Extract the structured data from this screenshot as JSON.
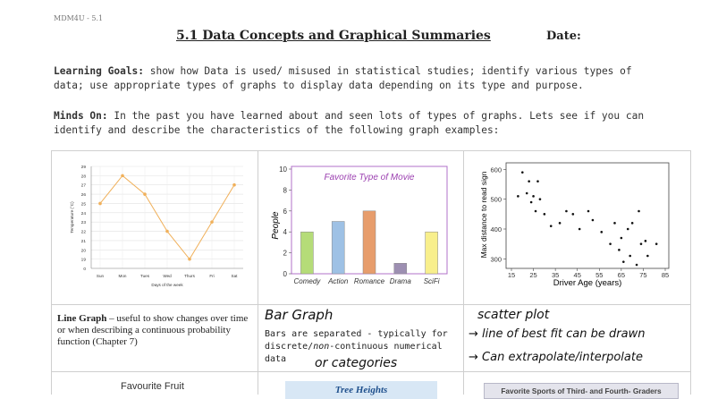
{
  "header": {
    "course": "MDM4U - 5.1",
    "title": "5.1 Data Concepts and Graphical Summaries",
    "date_label": "Date:"
  },
  "learning_goals": {
    "label": "Learning Goals:",
    "text": " show how Data is used/ misused in statistical studies; identify various types of data; use appropriate types of graphs to display data depending on its type and purpose."
  },
  "minds_on": {
    "label": "Minds On:",
    "text": " In the past you have learned about and seen lots of types of graphs.  Lets see if you can identify and describe the characteristics of the following graph examples:"
  },
  "cells": {
    "line": {
      "name": "Line Graph",
      "desc": " – useful to show changes over time or when describing a continuous probability function (Chapter 7)"
    },
    "bar": {
      "handwriting": "Bar Graph",
      "desc_1": "Bars are separated - typically for discrete/",
      "desc_non": "non",
      "desc_2": "-continuous numerical data",
      "handwriting_2": "or categories"
    },
    "scatter": {
      "handwriting_1": "scatter plot",
      "handwriting_2": "→ line of best fit can be drawn",
      "handwriting_3": "→ Can extrapolate/interpolate"
    },
    "row2": {
      "fruit_title": "Favourite Fruit",
      "tree_title": "Tree Heights",
      "sports_title": "Favorite Sports of Third- and Fourth- Graders"
    }
  },
  "chart_data": [
    {
      "type": "line",
      "title": "",
      "xlabel": "Days of the week",
      "ylabel": "Temperature (°C)",
      "categories": [
        "Sun",
        "Mon",
        "Tues",
        "Wed",
        "Thurs",
        "Fri",
        "Sat"
      ],
      "values": [
        25,
        28,
        26,
        22,
        19,
        23,
        27
      ],
      "ylim": [
        0,
        29
      ],
      "yticks": [
        0,
        19,
        20,
        21,
        22,
        23,
        24,
        25,
        26,
        27,
        28,
        29
      ],
      "color": "#f0b05a",
      "grid": true
    },
    {
      "type": "bar",
      "title": "Favorite Type of Movie",
      "ylabel": "People",
      "categories": [
        "Comedy",
        "Action",
        "Romance",
        "Drama",
        "SciFi"
      ],
      "values": [
        4,
        5,
        6,
        1,
        4
      ],
      "colors": [
        "#b5dc78",
        "#9ec1e5",
        "#e79d6c",
        "#9d8fb2",
        "#f8ef8c"
      ],
      "ylim": [
        0,
        10
      ],
      "yticks": [
        0,
        2,
        4,
        6,
        8,
        10
      ],
      "title_color": "#9b3fb0",
      "frame_color": "#b070c8",
      "grid": false
    },
    {
      "type": "scatter",
      "xlabel": "Driver Age (years)",
      "ylabel": "Max distance to read sign",
      "xticks": [
        15,
        25,
        35,
        45,
        55,
        65,
        75,
        85
      ],
      "yticks": [
        300,
        400,
        500,
        600
      ],
      "xlim": [
        15,
        85
      ],
      "ylim": [
        280,
        610
      ],
      "points": [
        [
          18,
          510
        ],
        [
          20,
          590
        ],
        [
          22,
          520
        ],
        [
          23,
          560
        ],
        [
          24,
          490
        ],
        [
          25,
          510
        ],
        [
          26,
          460
        ],
        [
          27,
          560
        ],
        [
          28,
          500
        ],
        [
          30,
          450
        ],
        [
          33,
          410
        ],
        [
          37,
          420
        ],
        [
          40,
          460
        ],
        [
          43,
          450
        ],
        [
          46,
          400
        ],
        [
          50,
          460
        ],
        [
          52,
          430
        ],
        [
          56,
          390
        ],
        [
          60,
          350
        ],
        [
          62,
          420
        ],
        [
          64,
          330
        ],
        [
          65,
          370
        ],
        [
          66,
          290
        ],
        [
          68,
          400
        ],
        [
          69,
          310
        ],
        [
          70,
          420
        ],
        [
          72,
          280
        ],
        [
          73,
          460
        ],
        [
          74,
          350
        ],
        [
          76,
          360
        ],
        [
          77,
          310
        ],
        [
          81,
          350
        ]
      ]
    }
  ]
}
